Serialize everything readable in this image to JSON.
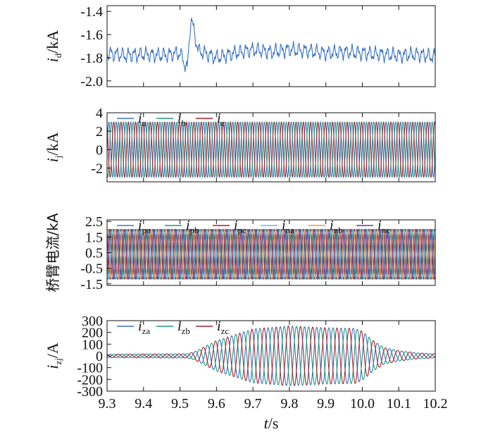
{
  "colors": {
    "blue": "#3b73c2",
    "teal": "#1f9a7d",
    "red": "#a8202b",
    "cyan": "#4ec3df",
    "orange": "#f39a3c",
    "purple": "#7b2f8e"
  },
  "shared_x": {
    "label_italic": "t",
    "label_unit": "/s",
    "range": [
      9.3,
      10.2
    ],
    "ticks": [
      "9.3",
      "9.4",
      "9.5",
      "9.6",
      "9.7",
      "9.8",
      "9.9",
      "10.0",
      "10.1",
      "10.2"
    ]
  },
  "chart_data": [
    {
      "type": "line",
      "ylabel": {
        "sym": "i",
        "sub": "d",
        "unit": "/kA"
      },
      "ylim": [
        -2.05,
        -1.35
      ],
      "yticks": [
        "-1.4",
        "-1.6",
        "-1.8",
        "-2.0"
      ],
      "ytick_values": [
        -1.4,
        -1.6,
        -1.8,
        -2.0
      ],
      "xlim": [
        9.3,
        10.2
      ],
      "series": [
        {
          "legend": "",
          "color": "blue",
          "x": [
            9.3,
            9.35,
            9.4,
            9.45,
            9.5,
            9.52,
            9.53,
            9.55,
            9.6,
            9.65,
            9.7,
            9.75,
            9.8,
            9.85,
            9.9,
            9.95,
            10.0,
            10.05,
            10.1,
            10.15,
            10.2
          ],
          "y": [
            -1.76,
            -1.78,
            -1.77,
            -1.78,
            -1.76,
            -1.9,
            -1.45,
            -1.74,
            -1.8,
            -1.76,
            -1.73,
            -1.75,
            -1.73,
            -1.74,
            -1.76,
            -1.75,
            -1.76,
            -1.77,
            -1.78,
            -1.77,
            -1.79
          ]
        }
      ]
    },
    {
      "type": "line",
      "ylabel": {
        "sym": "i",
        "sub": "j",
        "unit": "/kA"
      },
      "ylim": [
        -3.5,
        4.0
      ],
      "yticks": [
        "4",
        "2",
        "0",
        "-2"
      ],
      "ytick_values": [
        4,
        2,
        0,
        -2
      ],
      "xlim": [
        9.3,
        10.2
      ],
      "legend": [
        {
          "sym": "i",
          "sub": "a",
          "color": "blue"
        },
        {
          "sym": "i",
          "sub": "b",
          "color": "teal"
        },
        {
          "sym": "i",
          "sub": "c",
          "color": "red"
        }
      ],
      "series": [
        {
          "name": "ia",
          "color": "blue",
          "amplitude": 3.0,
          "offset": 0,
          "frequency_hz": 50,
          "phase_deg": 0
        },
        {
          "name": "ib",
          "color": "teal",
          "amplitude": 3.0,
          "offset": 0,
          "frequency_hz": 50,
          "phase_deg": -120
        },
        {
          "name": "ic",
          "color": "red",
          "amplitude": 3.0,
          "offset": 0,
          "frequency_hz": 50,
          "phase_deg": 120
        }
      ]
    },
    {
      "type": "line",
      "ylabel": {
        "text": "桥臂电流/kA"
      },
      "ylim": [
        -1.6,
        2.6
      ],
      "yticks": [
        "2.5",
        "1.5",
        "0.5",
        "-0.5",
        "-1.5"
      ],
      "ytick_values": [
        2.5,
        1.5,
        0.5,
        -0.5,
        -1.5
      ],
      "xlim": [
        9.3,
        10.2
      ],
      "legend": [
        {
          "sym": "i",
          "sub": "pa",
          "color": "blue"
        },
        {
          "sym": "i",
          "sub": "pb",
          "color": "teal"
        },
        {
          "sym": "i",
          "sub": "pc",
          "color": "red"
        },
        {
          "sym": "i",
          "sub": "na",
          "color": "cyan"
        },
        {
          "sym": "i",
          "sub": "nb",
          "color": "orange"
        },
        {
          "sym": "i",
          "sub": "nc",
          "color": "purple"
        }
      ],
      "series": [
        {
          "name": "ipa",
          "color": "blue",
          "amplitude": 1.6,
          "offset": 0.4,
          "frequency_hz": 50,
          "phase_deg": 0
        },
        {
          "name": "ipb",
          "color": "teal",
          "amplitude": 1.6,
          "offset": 0.4,
          "frequency_hz": 50,
          "phase_deg": -120
        },
        {
          "name": "ipc",
          "color": "red",
          "amplitude": 1.6,
          "offset": 0.4,
          "frequency_hz": 50,
          "phase_deg": 120
        },
        {
          "name": "ina",
          "color": "cyan",
          "amplitude": 1.6,
          "offset": 0.4,
          "frequency_hz": 50,
          "phase_deg": 180
        },
        {
          "name": "inb",
          "color": "orange",
          "amplitude": 1.6,
          "offset": 0.4,
          "frequency_hz": 50,
          "phase_deg": 60
        },
        {
          "name": "inc",
          "color": "purple",
          "amplitude": 1.6,
          "offset": 0.4,
          "frequency_hz": 50,
          "phase_deg": -60
        }
      ]
    },
    {
      "type": "line",
      "ylabel": {
        "sym": "i",
        "sub": "zj",
        "unit": "/A"
      },
      "ylim": [
        -300,
        300
      ],
      "yticks": [
        "300",
        "200",
        "100",
        "0",
        "-100",
        "-200",
        "-300"
      ],
      "ytick_values": [
        300,
        200,
        100,
        0,
        -100,
        -200,
        -300
      ],
      "xlim": [
        9.3,
        10.2
      ],
      "legend": [
        {
          "sym": "i",
          "sub": "za",
          "color": "blue"
        },
        {
          "sym": "i",
          "sub": "zb",
          "color": "teal"
        },
        {
          "sym": "i",
          "sub": "zc",
          "color": "red"
        }
      ],
      "envelope": {
        "t": [
          9.3,
          9.52,
          9.54,
          9.6,
          9.7,
          9.8,
          9.9,
          9.98,
          10.0,
          10.03,
          10.06,
          10.1,
          10.15,
          10.2
        ],
        "amp": [
          15,
          18,
          35,
          130,
          230,
          255,
          240,
          235,
          210,
          130,
          70,
          45,
          25,
          18
        ]
      },
      "series": [
        {
          "name": "iza",
          "color": "blue",
          "frequency_hz": 30,
          "phase_deg": 0
        },
        {
          "name": "izb",
          "color": "teal",
          "frequency_hz": 30,
          "phase_deg": -120
        },
        {
          "name": "izc",
          "color": "red",
          "frequency_hz": 30,
          "phase_deg": 120
        }
      ]
    }
  ]
}
